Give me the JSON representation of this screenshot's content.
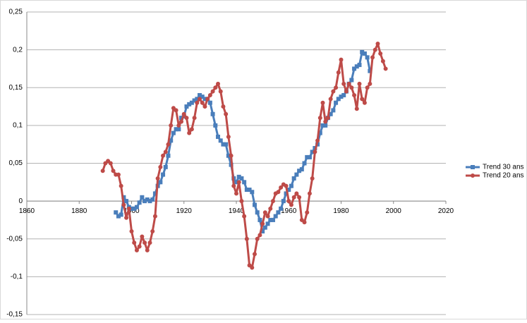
{
  "chart_data": {
    "type": "line",
    "x": [
      1889,
      1890,
      1891,
      1892,
      1893,
      1894,
      1895,
      1896,
      1897,
      1898,
      1899,
      1900,
      1901,
      1902,
      1903,
      1904,
      1905,
      1906,
      1907,
      1908,
      1909,
      1910,
      1911,
      1912,
      1913,
      1914,
      1915,
      1916,
      1917,
      1918,
      1919,
      1920,
      1921,
      1922,
      1923,
      1924,
      1925,
      1926,
      1927,
      1928,
      1929,
      1930,
      1931,
      1932,
      1933,
      1934,
      1935,
      1936,
      1937,
      1938,
      1939,
      1940,
      1941,
      1942,
      1943,
      1944,
      1945,
      1946,
      1947,
      1948,
      1949,
      1950,
      1951,
      1952,
      1953,
      1954,
      1955,
      1956,
      1957,
      1958,
      1959,
      1960,
      1961,
      1962,
      1963,
      1964,
      1965,
      1966,
      1967,
      1968,
      1969,
      1970,
      1971,
      1972,
      1973,
      1974,
      1975,
      1976,
      1977,
      1978,
      1979,
      1980,
      1981,
      1982,
      1983,
      1984,
      1985,
      1986,
      1987,
      1988,
      1989,
      1990,
      1991,
      1992,
      1993,
      1994,
      1995,
      1996,
      1997
    ],
    "series": [
      {
        "name": "Trend 30 ans",
        "color": "#4a7ebb",
        "marker": "square",
        "values": [
          null,
          null,
          null,
          null,
          null,
          -0.015,
          -0.02,
          -0.018,
          0.005,
          0.0,
          -0.008,
          -0.01,
          -0.01,
          -0.008,
          -0.002,
          0.005,
          0.0,
          0.002,
          0.0,
          0.002,
          0.01,
          0.02,
          0.025,
          0.035,
          0.045,
          0.06,
          0.08,
          0.09,
          0.095,
          0.095,
          0.11,
          0.112,
          0.125,
          0.128,
          0.13,
          0.133,
          0.135,
          0.14,
          0.138,
          0.135,
          0.135,
          0.13,
          0.115,
          0.1,
          0.085,
          0.08,
          0.075,
          0.075,
          0.06,
          0.048,
          0.03,
          0.025,
          0.032,
          0.03,
          0.025,
          0.015,
          0.015,
          0.012,
          -0.005,
          -0.015,
          -0.025,
          -0.04,
          -0.035,
          -0.03,
          -0.025,
          -0.025,
          -0.02,
          -0.015,
          -0.01,
          0.0,
          0.01,
          0.015,
          0.02,
          0.03,
          0.035,
          0.04,
          0.042,
          0.05,
          0.058,
          0.058,
          0.065,
          0.07,
          0.075,
          0.09,
          0.1,
          0.1,
          0.11,
          0.115,
          0.12,
          0.13,
          0.135,
          0.138,
          0.14,
          0.145,
          0.155,
          0.16,
          0.175,
          0.178,
          0.18,
          0.197,
          0.195,
          0.19,
          0.172,
          null,
          null,
          null,
          null,
          null,
          null
        ]
      },
      {
        "name": "Trend 20 ans",
        "color": "#be4b48",
        "marker": "circle",
        "values": [
          0.04,
          0.05,
          0.053,
          0.05,
          0.04,
          0.035,
          0.035,
          0.02,
          -0.005,
          -0.022,
          -0.01,
          -0.04,
          -0.055,
          -0.065,
          -0.06,
          -0.047,
          -0.055,
          -0.065,
          -0.055,
          -0.04,
          -0.02,
          0.03,
          0.045,
          0.06,
          0.065,
          0.075,
          0.1,
          0.123,
          0.12,
          0.1,
          0.105,
          0.115,
          0.11,
          0.09,
          0.095,
          0.11,
          0.13,
          0.135,
          0.13,
          0.125,
          0.135,
          0.14,
          0.145,
          0.15,
          0.155,
          0.145,
          0.125,
          0.115,
          0.085,
          0.06,
          0.02,
          0.01,
          0.025,
          0.0,
          -0.02,
          -0.05,
          -0.085,
          -0.088,
          -0.07,
          -0.05,
          -0.045,
          -0.03,
          -0.015,
          -0.02,
          -0.01,
          0.0,
          0.01,
          0.012,
          0.018,
          0.022,
          0.02,
          0.0,
          -0.005,
          0.005,
          0.01,
          0.005,
          -0.025,
          -0.028,
          -0.015,
          0.01,
          0.03,
          0.065,
          0.08,
          0.11,
          0.13,
          0.105,
          0.11,
          0.135,
          0.145,
          0.15,
          0.17,
          0.187,
          0.155,
          0.145,
          0.155,
          0.15,
          0.14,
          0.122,
          0.155,
          0.135,
          0.13,
          0.15,
          0.155,
          0.19,
          0.2,
          0.208,
          0.195,
          0.185,
          0.175
        ]
      }
    ],
    "xlim": [
      1860,
      2020
    ],
    "xticks": [
      1860,
      1880,
      1900,
      1920,
      1940,
      1960,
      1980,
      2000,
      2020
    ],
    "ylim": [
      -0.15,
      0.25
    ],
    "yticks": [
      {
        "value": -0.15,
        "label": "-0,15"
      },
      {
        "value": -0.1,
        "label": "-0,1"
      },
      {
        "value": -0.05,
        "label": "-0,05"
      },
      {
        "value": 0,
        "label": "0"
      },
      {
        "value": 0.05,
        "label": "0,05"
      },
      {
        "value": 0.1,
        "label": "0,1"
      },
      {
        "value": 0.15,
        "label": "0,15"
      },
      {
        "value": 0.2,
        "label": "0,2"
      },
      {
        "value": 0.25,
        "label": "0,25"
      }
    ],
    "grid": true,
    "legend": "right"
  }
}
